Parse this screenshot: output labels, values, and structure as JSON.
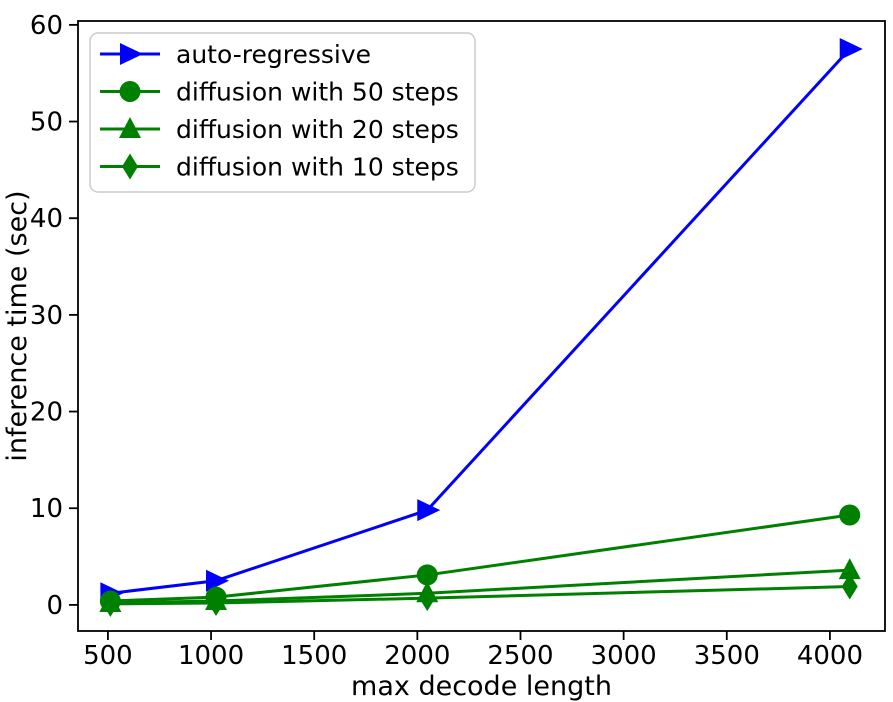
{
  "figure": {
    "background": "#ffffff"
  },
  "chart_data": {
    "type": "line",
    "title": "",
    "xlabel": "max decode length",
    "ylabel": "inference time (sec)",
    "x": [
      512,
      1024,
      2048,
      4096
    ],
    "xlim": [
      355,
      4267
    ],
    "ylim": [
      -2.7,
      60.4
    ],
    "xticks": [
      500,
      1000,
      1500,
      2000,
      2500,
      3000,
      3500,
      4000
    ],
    "yticks": [
      0,
      10,
      20,
      30,
      40,
      50,
      60
    ],
    "grid": false,
    "legend_position": "upper-left",
    "series": [
      {
        "name": "auto-regressive",
        "color": "#0000ff",
        "marker": "triangle-right",
        "values": [
          1.2,
          2.5,
          9.8,
          57.5
        ]
      },
      {
        "name": "diffusion with 50 steps",
        "color": "#008000",
        "marker": "circle",
        "values": [
          0.4,
          0.8,
          3.1,
          9.3
        ]
      },
      {
        "name": "diffusion with 20 steps",
        "color": "#008000",
        "marker": "triangle-up",
        "values": [
          0.2,
          0.4,
          1.2,
          3.6
        ]
      },
      {
        "name": "diffusion with 10 steps",
        "color": "#008000",
        "marker": "diamond",
        "values": [
          0.1,
          0.2,
          0.7,
          1.9
        ]
      }
    ]
  }
}
